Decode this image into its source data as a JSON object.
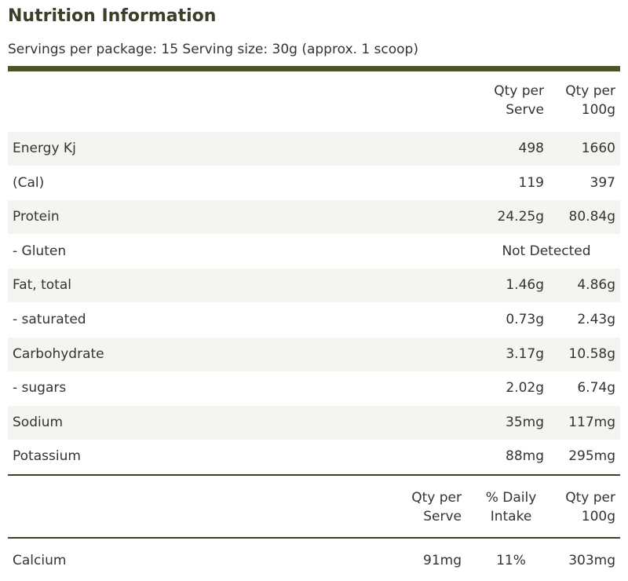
{
  "title": "Nutrition Information",
  "servings": "Servings per package: 15 Serving size: 30g (approx. 1 scoop)",
  "table1": {
    "headers": {
      "qty_per_serve": [
        "Qty per",
        "Serve"
      ],
      "qty_per_100g": [
        "Qty per",
        "100g"
      ]
    },
    "rows": [
      {
        "label": "Energy Kj",
        "serve": "498",
        "per100": "1660"
      },
      {
        "label": "(Cal)",
        "serve": "119",
        "per100": "397"
      },
      {
        "label": "Protein",
        "serve": "24.25g",
        "per100": "80.84g"
      },
      {
        "label": "- Gluten",
        "combined": "Not Detected"
      },
      {
        "label": "Fat, total",
        "serve": "1.46g",
        "per100": "4.86g"
      },
      {
        "label": "- saturated",
        "serve": "0.73g",
        "per100": "2.43g"
      },
      {
        "label": "Carbohydrate",
        "serve": "3.17g",
        "per100": "10.58g"
      },
      {
        "label": "- sugars",
        "serve": "2.02g",
        "per100": "6.74g"
      },
      {
        "label": "Sodium",
        "serve": "35mg",
        "per100": "117mg"
      },
      {
        "label": "Potassium",
        "serve": "88mg",
        "per100": "295mg"
      }
    ]
  },
  "table2": {
    "headers": {
      "qty_per_serve": [
        "Qty per",
        "Serve"
      ],
      "daily_intake": [
        "% Daily",
        "Intake"
      ],
      "qty_per_100g": [
        "Qty per",
        "100g"
      ]
    },
    "rows": [
      {
        "label": "Calcium",
        "serve": "91mg",
        "daily": "11%",
        "per100": "303mg"
      }
    ]
  }
}
